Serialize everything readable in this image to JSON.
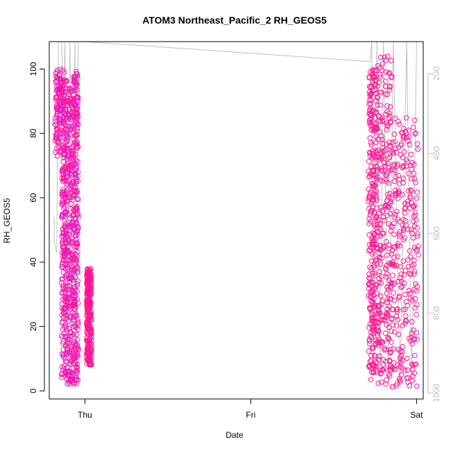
{
  "chart_data": {
    "type": "scatter",
    "title": "ATOM3 Northeast_Pacific_2 RH_GEOS5",
    "xlabel": "Date",
    "ylabel": "RH_GEOS5",
    "x_ticks": [
      {
        "label": "Thu",
        "value": 0
      },
      {
        "label": "Fri",
        "value": 1
      },
      {
        "label": "Sat",
        "value": 2
      }
    ],
    "xlim": [
      -0.215,
      2.04
    ],
    "ylim": [
      -2.5,
      108.5
    ],
    "y_ticks": [
      0,
      20,
      40,
      60,
      80,
      100
    ],
    "y2_ticks": [
      200,
      400,
      600,
      800,
      1000
    ],
    "y2lim": [
      1015,
      120
    ],
    "grid": false,
    "colors": {
      "points": "#ff1493",
      "points_alt": "#e81ac8",
      "secondary_line": "#bfbfbf",
      "secondary_axis": "#bfbfbf",
      "axis": "#000000"
    },
    "series": [
      {
        "marker": "open-circle",
        "clusters": [
          {
            "x": [
              -0.18,
              -0.14
            ],
            "rh_min": 72,
            "rh_max": 100,
            "mode": "upper"
          },
          {
            "x": [
              -0.14,
              -0.11
            ],
            "rh_min": 4,
            "rh_max": 100,
            "mode": "full"
          },
          {
            "x": [
              -0.11,
              -0.07
            ],
            "rh_min": 2,
            "rh_max": 95,
            "mode": "full"
          },
          {
            "x": [
              -0.07,
              -0.04
            ],
            "rh_min": 2,
            "rh_max": 100,
            "mode": "full"
          },
          {
            "x": [
              0.01,
              0.04
            ],
            "rh_min": 8,
            "rh_max": 38,
            "mode": "full"
          },
          {
            "x": [
              1.71,
              1.76
            ],
            "rh_min": 3,
            "rh_max": 100,
            "mode": "full"
          },
          {
            "x": [
              1.76,
              1.85
            ],
            "rh_min": 2,
            "rh_max": 104,
            "mode": "full"
          },
          {
            "x": [
              1.85,
              2.01
            ],
            "rh_min": 1,
            "rh_max": 85,
            "mode": "full"
          }
        ]
      },
      {
        "name": "pressure",
        "axis": "y2",
        "style": "line",
        "path": [
          [
            -0.185,
            560
          ],
          [
            -0.185,
            620
          ],
          [
            -0.17,
            650
          ],
          [
            -0.16,
            120
          ],
          [
            -0.14,
            120
          ],
          [
            -0.13,
            300
          ],
          [
            -0.12,
            120
          ],
          [
            -0.11,
            900
          ],
          [
            -0.09,
            120
          ],
          [
            -0.08,
            950
          ],
          [
            -0.06,
            120
          ],
          [
            -0.05,
            980
          ],
          [
            -0.04,
            120
          ],
          [
            0.0,
            120
          ],
          [
            1.72,
            170
          ],
          [
            1.73,
            120
          ],
          [
            1.74,
            940
          ],
          [
            1.76,
            120
          ],
          [
            1.78,
            960
          ],
          [
            1.8,
            120
          ],
          [
            1.83,
            980
          ],
          [
            1.86,
            120
          ],
          [
            1.9,
            990
          ],
          [
            1.94,
            120
          ],
          [
            1.97,
            990
          ],
          [
            2.0,
            120
          ]
        ]
      }
    ]
  }
}
